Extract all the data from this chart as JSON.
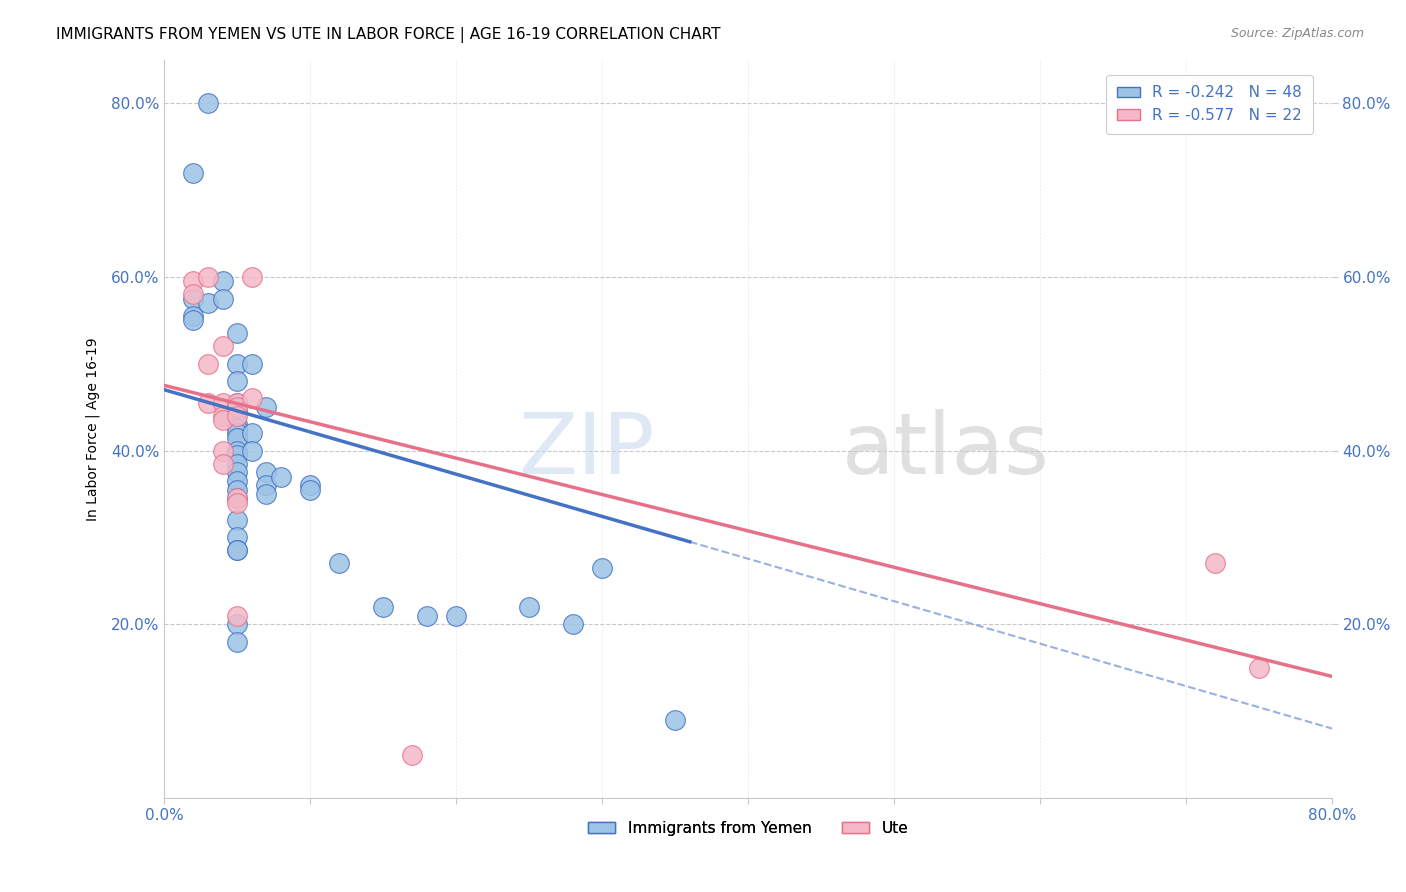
{
  "title": "IMMIGRANTS FROM YEMEN VS UTE IN LABOR FORCE | AGE 16-19 CORRELATION CHART",
  "source": "Source: ZipAtlas.com",
  "ylabel": "In Labor Force | Age 16-19",
  "xlim": [
    0.0,
    0.08
  ],
  "ylim": [
    0.0,
    0.85
  ],
  "xticks": [
    0.0,
    0.01,
    0.02,
    0.03,
    0.04,
    0.05,
    0.06,
    0.07,
    0.08
  ],
  "xtick_labels_show": [
    0.0,
    0.08
  ],
  "yticks": [
    0.2,
    0.4,
    0.6,
    0.8
  ],
  "ytick_labels": [
    "20.0%",
    "40.0%",
    "60.0%",
    "80.0%"
  ],
  "bottom_xtick_labels": [
    "0.0%",
    "",
    "",
    "",
    "",
    "",
    "",
    "",
    "80.0%"
  ],
  "legend_entries": [
    {
      "label": "R = -0.242   N = 48",
      "color": "#aac4e0"
    },
    {
      "label": "R = -0.577   N = 22",
      "color": "#f4b8c8"
    }
  ],
  "legend_bottom": [
    "Immigrants from Yemen",
    "Ute"
  ],
  "watermark_zip": "ZIP",
  "watermark_atlas": "atlas",
  "blue_scatter": [
    [
      0.002,
      0.72
    ],
    [
      0.002,
      0.575
    ],
    [
      0.002,
      0.555
    ],
    [
      0.002,
      0.55
    ],
    [
      0.003,
      0.8
    ],
    [
      0.003,
      0.57
    ],
    [
      0.004,
      0.595
    ],
    [
      0.004,
      0.575
    ],
    [
      0.005,
      0.535
    ],
    [
      0.005,
      0.5
    ],
    [
      0.005,
      0.48
    ],
    [
      0.005,
      0.455
    ],
    [
      0.005,
      0.445
    ],
    [
      0.005,
      0.43
    ],
    [
      0.005,
      0.425
    ],
    [
      0.005,
      0.42
    ],
    [
      0.005,
      0.415
    ],
    [
      0.005,
      0.4
    ],
    [
      0.005,
      0.395
    ],
    [
      0.005,
      0.385
    ],
    [
      0.005,
      0.375
    ],
    [
      0.005,
      0.365
    ],
    [
      0.005,
      0.355
    ],
    [
      0.005,
      0.345
    ],
    [
      0.005,
      0.32
    ],
    [
      0.005,
      0.3
    ],
    [
      0.005,
      0.285
    ],
    [
      0.005,
      0.285
    ],
    [
      0.005,
      0.2
    ],
    [
      0.005,
      0.18
    ],
    [
      0.006,
      0.5
    ],
    [
      0.006,
      0.42
    ],
    [
      0.006,
      0.4
    ],
    [
      0.007,
      0.45
    ],
    [
      0.007,
      0.375
    ],
    [
      0.007,
      0.36
    ],
    [
      0.007,
      0.35
    ],
    [
      0.008,
      0.37
    ],
    [
      0.01,
      0.36
    ],
    [
      0.01,
      0.355
    ],
    [
      0.012,
      0.27
    ],
    [
      0.015,
      0.22
    ],
    [
      0.018,
      0.21
    ],
    [
      0.02,
      0.21
    ],
    [
      0.025,
      0.22
    ],
    [
      0.028,
      0.2
    ],
    [
      0.03,
      0.265
    ],
    [
      0.035,
      0.09
    ]
  ],
  "pink_scatter": [
    [
      0.002,
      0.595
    ],
    [
      0.002,
      0.58
    ],
    [
      0.003,
      0.6
    ],
    [
      0.003,
      0.455
    ],
    [
      0.003,
      0.5
    ],
    [
      0.004,
      0.455
    ],
    [
      0.004,
      0.44
    ],
    [
      0.004,
      0.435
    ],
    [
      0.004,
      0.4
    ],
    [
      0.004,
      0.385
    ],
    [
      0.004,
      0.52
    ],
    [
      0.005,
      0.455
    ],
    [
      0.005,
      0.45
    ],
    [
      0.005,
      0.44
    ],
    [
      0.005,
      0.345
    ],
    [
      0.005,
      0.34
    ],
    [
      0.005,
      0.21
    ],
    [
      0.006,
      0.6
    ],
    [
      0.006,
      0.46
    ],
    [
      0.017,
      0.05
    ],
    [
      0.072,
      0.27
    ],
    [
      0.075,
      0.15
    ]
  ],
  "blue_line": {
    "x0": 0.0,
    "y0": 0.47,
    "x1": 0.036,
    "y1": 0.295
  },
  "pink_line": {
    "x0": 0.0,
    "y0": 0.475,
    "x1": 0.08,
    "y1": 0.14
  },
  "blue_dash_line": {
    "x0": 0.036,
    "y0": 0.295,
    "x1": 0.08,
    "y1": 0.08
  },
  "blue_color": "#4472c4",
  "pink_color": "#e8718a",
  "blue_scatter_color": "#9dc3e6",
  "pink_scatter_color": "#f4b8c8",
  "grid_color": "#c8c8c8",
  "title_fontsize": 11,
  "tick_label_color": "#4472c4"
}
